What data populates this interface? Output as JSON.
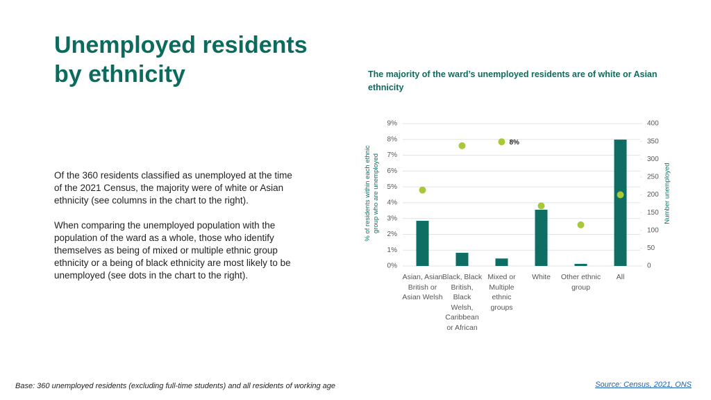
{
  "header": {
    "title": "Unemployed residents by ethnicity"
  },
  "body": [
    "Of the 360 residents classified as unemployed at the time of the 2021 Census, the majority were of white or Asian ethnicity (see columns in the chart to the right).",
    "When comparing the unemployed population with the population of the ward as a whole, those who identify themselves as being of mixed or multiple ethnic group ethnicity or a being of black ethnicity are most likely to be unemployed (see dots in the chart to the right)."
  ],
  "footer": {
    "base": "Base: 360 unemployed residents (excluding full-time students) and all residents of working age",
    "source": "Source: Census, 2021, ONS"
  },
  "chart_data": {
    "type": "bar",
    "title": "The majority of the ward’s unemployed residents are of white or Asian ethnicity",
    "ylabel": "% of residents within each ethnic group who are unemployed",
    "y2label": "Number unemployed",
    "categories": [
      "Asian, Asian British or Asian Welsh",
      "Black, Black British, Black Welsh, Caribbean or African",
      "Mixed or Multiple ethnic groups",
      "White",
      "Other ethnic group",
      "All"
    ],
    "series": [
      {
        "type": "bar",
        "axis": "y2",
        "color": "#0e6e64",
        "values": [
          127,
          37,
          21,
          158,
          6,
          355
        ]
      },
      {
        "type": "scatter",
        "axis": "y",
        "color": "#a8c838",
        "values": [
          4.8,
          7.6,
          7.85,
          3.8,
          2.6,
          4.5
        ],
        "value_labels": [
          null,
          null,
          "8%",
          null,
          null,
          null
        ]
      }
    ],
    "ylim": [
      0,
      9
    ],
    "yticks": [
      {
        "value": 0,
        "label": "0%"
      },
      {
        "value": 1,
        "label": "1%"
      },
      {
        "value": 2,
        "label": "2%"
      },
      {
        "value": 3,
        "label": "3%"
      },
      {
        "value": 4,
        "label": "4%"
      },
      {
        "value": 5,
        "label": "5%"
      },
      {
        "value": 6,
        "label": "6%"
      },
      {
        "value": 7,
        "label": "7%"
      },
      {
        "value": 8,
        "label": "8%"
      },
      {
        "value": 9,
        "label": "9%"
      }
    ],
    "y2lim": [
      0,
      400
    ],
    "y2ticks": [
      0,
      50,
      100,
      150,
      200,
      250,
      300,
      350,
      400
    ],
    "grid": true
  }
}
